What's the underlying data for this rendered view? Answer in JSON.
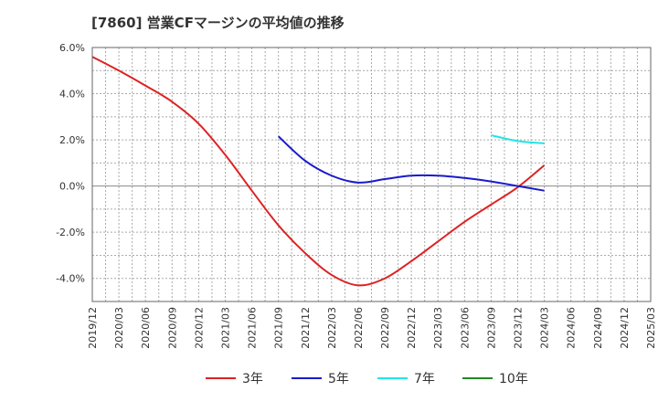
{
  "chart_data": {
    "type": "line",
    "title": "[7860]  営業CFマージンの平均値の推移",
    "xlabel": "",
    "ylabel": "",
    "ylim": [
      -5,
      6
    ],
    "yticks": [
      6,
      4,
      2,
      0,
      -2,
      -4
    ],
    "ytick_labels": [
      "6.0%",
      "4.0%",
      "2.0%",
      "0.0%",
      "-2.0%",
      "-4.0%"
    ],
    "x_ticks": [
      "2019/12",
      "2020/03",
      "2020/06",
      "2020/09",
      "2020/12",
      "2021/03",
      "2021/06",
      "2021/09",
      "2021/12",
      "2022/03",
      "2022/06",
      "2022/09",
      "2022/12",
      "2023/03",
      "2023/06",
      "2023/09",
      "2023/12",
      "2024/03",
      "2024/06",
      "2024/09",
      "2024/12",
      "2025/03"
    ],
    "grid": true,
    "legend_position": "bottom",
    "series": [
      {
        "name": "3年",
        "color": "#dd2222",
        "points": [
          [
            "2019/12",
            5.6
          ],
          [
            "2020/03",
            5.0
          ],
          [
            "2020/06",
            4.35
          ],
          [
            "2020/09",
            3.65
          ],
          [
            "2020/12",
            2.7
          ],
          [
            "2021/03",
            1.35
          ],
          [
            "2021/06",
            -0.2
          ],
          [
            "2021/09",
            -1.7
          ],
          [
            "2021/12",
            -2.9
          ],
          [
            "2022/03",
            -3.85
          ],
          [
            "2022/06",
            -4.3
          ],
          [
            "2022/09",
            -4.0
          ],
          [
            "2022/12",
            -3.25
          ],
          [
            "2023/03",
            -2.4
          ],
          [
            "2023/06",
            -1.55
          ],
          [
            "2023/09",
            -0.8
          ],
          [
            "2023/12",
            -0.05
          ],
          [
            "2024/03",
            0.9
          ]
        ]
      },
      {
        "name": "5年",
        "color": "#1a1acc",
        "points": [
          [
            "2021/09",
            2.15
          ],
          [
            "2021/12",
            1.1
          ],
          [
            "2022/03",
            0.45
          ],
          [
            "2022/06",
            0.15
          ],
          [
            "2022/09",
            0.3
          ],
          [
            "2022/12",
            0.45
          ],
          [
            "2023/03",
            0.45
          ],
          [
            "2023/06",
            0.35
          ],
          [
            "2023/09",
            0.2
          ],
          [
            "2023/12",
            0.0
          ],
          [
            "2024/03",
            -0.2
          ]
        ]
      },
      {
        "name": "7年",
        "color": "#22e5e5",
        "points": [
          [
            "2023/09",
            2.2
          ],
          [
            "2023/12",
            1.95
          ],
          [
            "2024/03",
            1.85
          ]
        ]
      },
      {
        "name": "10年",
        "color": "#228822",
        "points": []
      }
    ]
  }
}
